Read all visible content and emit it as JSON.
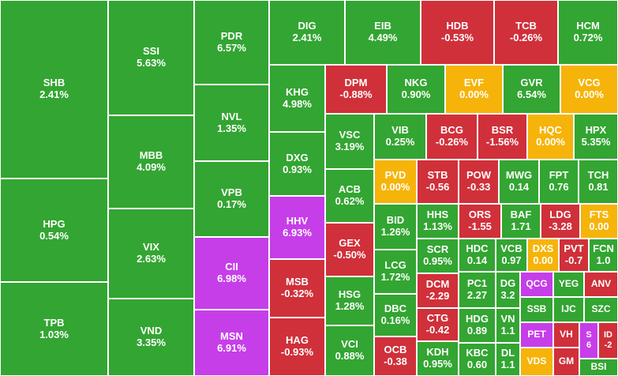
{
  "colors": {
    "up": "#33a532",
    "down": "#d0303a",
    "ref": "#f6b40a",
    "ceiling": "#c63ee8"
  },
  "chart_data": {
    "type": "treemap",
    "cells": [
      {
        "ticker": "SHB",
        "change": "2.41%",
        "status": "up"
      },
      {
        "ticker": "HPG",
        "change": "0.54%",
        "status": "up"
      },
      {
        "ticker": "TPB",
        "change": "1.03%",
        "status": "up"
      },
      {
        "ticker": "SSI",
        "change": "5.63%",
        "status": "up"
      },
      {
        "ticker": "MBB",
        "change": "4.09%",
        "status": "up"
      },
      {
        "ticker": "VIX",
        "change": "2.63%",
        "status": "up"
      },
      {
        "ticker": "VND",
        "change": "3.35%",
        "status": "up"
      },
      {
        "ticker": "PDR",
        "change": "6.57%",
        "status": "up"
      },
      {
        "ticker": "NVL",
        "change": "1.35%",
        "status": "up"
      },
      {
        "ticker": "VPB",
        "change": "0.17%",
        "status": "up"
      },
      {
        "ticker": "CII",
        "change": "6.98%",
        "status": "ceiling"
      },
      {
        "ticker": "MSN",
        "change": "6.91%",
        "status": "ceiling"
      },
      {
        "ticker": "DIG",
        "change": "2.41%",
        "status": "up"
      },
      {
        "ticker": "EIB",
        "change": "4.49%",
        "status": "up"
      },
      {
        "ticker": "HDB",
        "change": "-0.53%",
        "status": "down"
      },
      {
        "ticker": "TCB",
        "change": "-0.26%",
        "status": "down"
      },
      {
        "ticker": "HCM",
        "change": "0.72%",
        "status": "up"
      },
      {
        "ticker": "KHG",
        "change": "4.98%",
        "status": "up"
      },
      {
        "ticker": "DXG",
        "change": "0.93%",
        "status": "up"
      },
      {
        "ticker": "HHV",
        "change": "6.93%",
        "status": "ceiling"
      },
      {
        "ticker": "MSB",
        "change": "-0.32%",
        "status": "down"
      },
      {
        "ticker": "HAG",
        "change": "-0.93%",
        "status": "down"
      },
      {
        "ticker": "DPM",
        "change": "-0.88%",
        "status": "down"
      },
      {
        "ticker": "NKG",
        "change": "0.90%",
        "status": "up"
      },
      {
        "ticker": "EVF",
        "change": "0.00%",
        "status": "ref"
      },
      {
        "ticker": "GVR",
        "change": "6.54%",
        "status": "up"
      },
      {
        "ticker": "VCG",
        "change": "0.00%",
        "status": "ref"
      },
      {
        "ticker": "VSC",
        "change": "3.19%",
        "status": "up"
      },
      {
        "ticker": "ACB",
        "change": "0.62%",
        "status": "up"
      },
      {
        "ticker": "GEX",
        "change": "-0.50%",
        "status": "down"
      },
      {
        "ticker": "HSG",
        "change": "1.28%",
        "status": "up"
      },
      {
        "ticker": "VCI",
        "change": "0.88%",
        "status": "up"
      },
      {
        "ticker": "VIB",
        "change": "0.25%",
        "status": "up"
      },
      {
        "ticker": "BCG",
        "change": "-0.26%",
        "status": "down"
      },
      {
        "ticker": "BSR",
        "change": "-1.56%",
        "status": "down"
      },
      {
        "ticker": "HQC",
        "change": "0.00%",
        "status": "ref"
      },
      {
        "ticker": "HPX",
        "change": "5.35%",
        "status": "up"
      },
      {
        "ticker": "PVD",
        "change": "0.00%",
        "status": "ref"
      },
      {
        "ticker": "BID",
        "change": "1.26%",
        "status": "up"
      },
      {
        "ticker": "LCG",
        "change": "1.72%",
        "status": "up"
      },
      {
        "ticker": "DBC",
        "change": "0.16%",
        "status": "up"
      },
      {
        "ticker": "STB",
        "change": "-0.56",
        "status": "down"
      },
      {
        "ticker": "POW",
        "change": "-0.33",
        "status": "down"
      },
      {
        "ticker": "MWG",
        "change": "0.14",
        "status": "up"
      },
      {
        "ticker": "FPT",
        "change": "0.76",
        "status": "up"
      },
      {
        "ticker": "TCH",
        "change": "0.81",
        "status": "up"
      },
      {
        "ticker": "HHS",
        "change": "1.13%",
        "status": "up"
      },
      {
        "ticker": "ORS",
        "change": "-1.55",
        "status": "down"
      },
      {
        "ticker": "BAF",
        "change": "1.71",
        "status": "up"
      },
      {
        "ticker": "LDG",
        "change": "-3.28",
        "status": "down"
      },
      {
        "ticker": "FTS",
        "change": "0.00",
        "status": "ref"
      },
      {
        "ticker": "SCR",
        "change": "0.95%",
        "status": "up"
      },
      {
        "ticker": "HDC",
        "change": "0.14",
        "status": "up"
      },
      {
        "ticker": "VCB",
        "change": "0.97",
        "status": "up"
      },
      {
        "ticker": "DXS",
        "change": "0.00",
        "status": "ref"
      },
      {
        "ticker": "PVT",
        "change": "-0.7",
        "status": "down"
      },
      {
        "ticker": "FCN",
        "change": "1.0",
        "status": "up"
      },
      {
        "ticker": "OCB",
        "change": "-0.38",
        "status": "down"
      },
      {
        "ticker": "DCM",
        "change": "-2.29",
        "status": "down"
      },
      {
        "ticker": "CTG",
        "change": "-0.42",
        "status": "down"
      },
      {
        "ticker": "KDH",
        "change": "0.95%",
        "status": "up"
      },
      {
        "ticker": "PC1",
        "change": "2.27",
        "status": "up"
      },
      {
        "ticker": "HDG",
        "change": "0.89",
        "status": "up"
      },
      {
        "ticker": "KBC",
        "change": "0.60",
        "status": "up"
      },
      {
        "ticker": "DG",
        "change": "3.2",
        "status": "up"
      },
      {
        "ticker": "VN",
        "change": "1.1",
        "status": "up"
      },
      {
        "ticker": "DL",
        "change": "1.1",
        "status": "up"
      },
      {
        "ticker": "QCG",
        "change": "",
        "status": "ceiling"
      },
      {
        "ticker": "YEG",
        "change": "",
        "status": "up"
      },
      {
        "ticker": "ANV",
        "change": "",
        "status": "down"
      },
      {
        "ticker": "SSB",
        "change": "",
        "status": "up"
      },
      {
        "ticker": "IJC",
        "change": "",
        "status": "up"
      },
      {
        "ticker": "SZC",
        "change": "",
        "status": "up"
      },
      {
        "ticker": "PET",
        "change": "",
        "status": "ceiling"
      },
      {
        "ticker": "VH",
        "change": "",
        "status": "down"
      },
      {
        "ticker": "S",
        "change": "6",
        "status": "ceiling"
      },
      {
        "ticker": "ID",
        "change": "-2",
        "status": "down"
      },
      {
        "ticker": "VDS",
        "change": "",
        "status": "ref"
      },
      {
        "ticker": "GM",
        "change": "",
        "status": "down"
      },
      {
        "ticker": "BSI",
        "change": "",
        "status": "up"
      }
    ]
  }
}
